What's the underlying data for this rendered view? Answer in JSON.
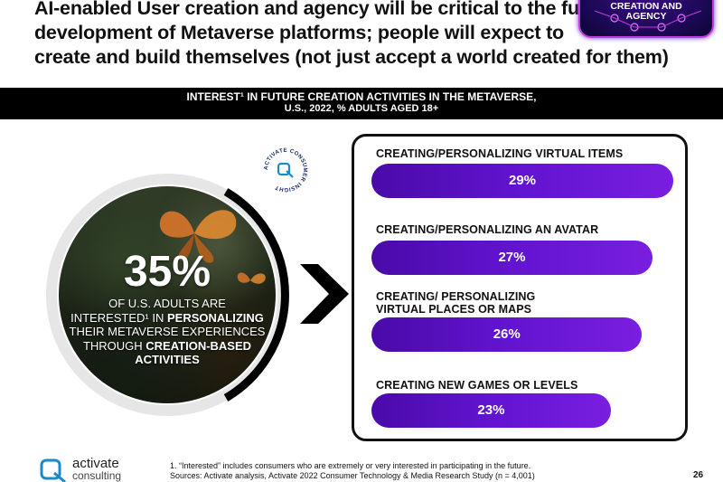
{
  "headline": [
    "AI-enabled User creation and agency will be critical to the full",
    "development of Metaverse platforms; people will expect to",
    "create and build themselves (not just accept a world created for them)"
  ],
  "badge": {
    "lines": [
      "CREATION AND",
      "AGENCY"
    ]
  },
  "band": {
    "line1": "INTEREST¹ IN FUTURE CREATION ACTIVITIES IN THE METAVERSE,",
    "line2": "U.S., 2022, % ADULTS AGED 18+"
  },
  "callout": {
    "stat": "35%",
    "t1": "OF U.S. ADULTS ARE",
    "t2a": "INTERESTED¹ IN ",
    "t2b": "PERSONALIZING",
    "t3": "THEIR METAVERSE EXPERIENCES",
    "t4a": "THROUGH ",
    "t4b": "CREATION-BASED",
    "t5": "ACTIVITIES"
  },
  "seal": {
    "text": "ACTIVATE CONSUMER INSIGHT"
  },
  "chart_data": {
    "type": "bar",
    "orientation": "horizontal",
    "categories": [
      "CREATING/PERSONALIZING VIRTUAL ITEMS",
      "CREATING/PERSONALIZING AN AVATAR",
      "CREATING/ PERSONALIZING VIRTUAL PLACES OR MAPS",
      "CREATING NEW GAMES OR LEVELS"
    ],
    "category_lines": [
      [
        "CREATING/PERSONALIZING VIRTUAL ITEMS"
      ],
      [
        "CREATING/PERSONALIZING AN AVATAR"
      ],
      [
        "CREATING/ PERSONALIZING",
        "VIRTUAL PLACES OR MAPS"
      ],
      [
        "CREATING NEW GAMES OR LEVELS"
      ]
    ],
    "values": [
      29,
      27,
      26,
      23
    ],
    "value_labels": [
      "29%",
      "27%",
      "26%",
      "23%"
    ],
    "unit": "%",
    "bar_color": "#6214d0"
  },
  "logo": {
    "name": "activate",
    "sub": "consulting"
  },
  "footnote": {
    "line1": "1. “Interested” includes consumers who are extremely or very interested in participating in the future.",
    "line2": "Sources: Activate analysis, Activate 2022 Consumer Technology & Media Research Study (n = 4,001)"
  },
  "page_number": "26",
  "colors": {
    "accent": "#6214d0",
    "band": "#000000",
    "badge_border": "#c23be0"
  }
}
